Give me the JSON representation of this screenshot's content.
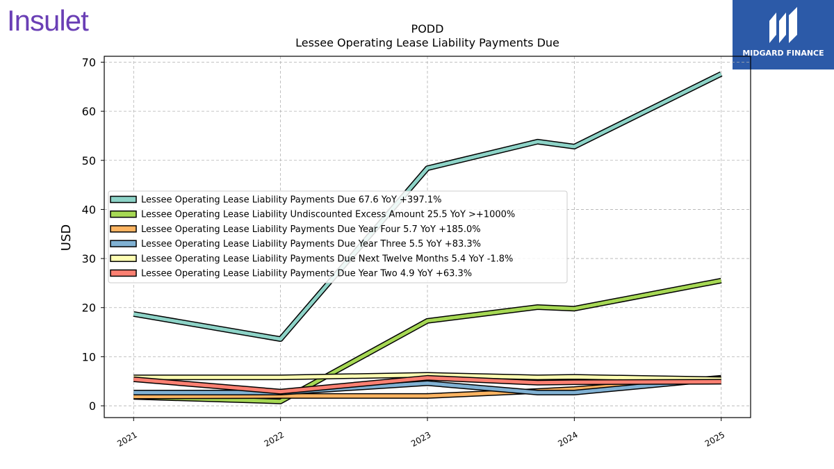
{
  "branding": {
    "company_logo_text": "Insulet",
    "publisher_logo_text": "MIDGARD FINANCE"
  },
  "chart_data": {
    "type": "line",
    "title": "PODD",
    "subtitle": "Lessee Operating Lease Liability Payments Due",
    "ylabel": "USD",
    "xlabel": "",
    "x": [
      2021.0,
      2022.0,
      2023.0,
      2023.75,
      2024.0,
      2025.0
    ],
    "x_ticks": [
      "2021",
      "2022",
      "2023",
      "2024",
      "2025"
    ],
    "ylim": [
      -2.4,
      71.2
    ],
    "y_ticks": [
      0,
      10,
      20,
      30,
      40,
      50,
      60,
      70
    ],
    "grid": true,
    "legend_position": "center-left",
    "series": [
      {
        "name": "Lessee Operating Lease Liability Payments Due",
        "legend_label": "Lessee Operating Lease Liability Payments Due  67.6 YoY +397.1%",
        "color": "#8dd3c7",
        "values": [
          18.7,
          13.6,
          48.4,
          53.8,
          52.8,
          67.6
        ]
      },
      {
        "name": "Lessee Operating Lease Liability Undiscounted Excess Amount",
        "legend_label": "Lessee Operating Lease Liability Undiscounted Excess Amount  25.5 YoY >+1000%",
        "color": "#a6d854",
        "values": [
          1.8,
          0.9,
          17.3,
          20.1,
          19.8,
          25.5
        ]
      },
      {
        "name": "Lessee Operating Lease Liability Payments Due Year Four",
        "legend_label": "Lessee Operating Lease Liability Payments Due Year Four  5.7 YoY +185.0%",
        "color": "#fdb462",
        "values": [
          1.9,
          2.0,
          2.0,
          3.0,
          3.4,
          5.7
        ]
      },
      {
        "name": "Lessee Operating Lease Liability Payments Due Year Three",
        "legend_label": "Lessee Operating Lease Liability Payments Due Year Three  5.5 YoY +83.3%",
        "color": "#80b1d3",
        "values": [
          2.7,
          2.7,
          4.6,
          2.7,
          2.7,
          5.5
        ]
      },
      {
        "name": "Lessee Operating Lease Liability Payments Due Next Twelve Months",
        "legend_label": "Lessee Operating Lease Liability Payments Due Next Twelve Months  5.4 YoY -1.8%",
        "color": "#ffffb3",
        "values": [
          5.8,
          5.8,
          6.3,
          5.8,
          5.9,
          5.4
        ]
      },
      {
        "name": "Lessee Operating Lease Liability Payments Due Year Two",
        "legend_label": "Lessee Operating Lease Liability Payments Due Year Two  4.9 YoY +63.3%",
        "color": "#fb8072",
        "values": [
          5.4,
          2.9,
          5.7,
          4.7,
          4.8,
          4.9
        ]
      }
    ]
  }
}
